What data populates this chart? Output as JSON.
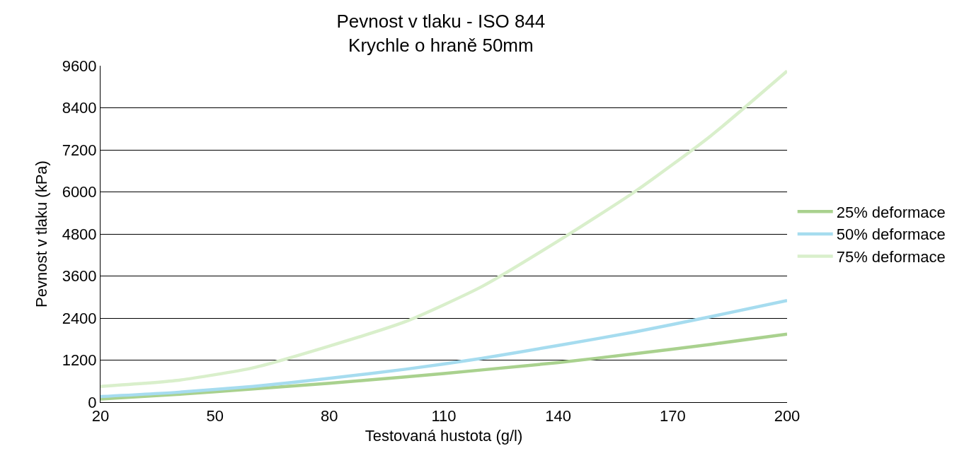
{
  "chart_data": {
    "type": "line",
    "title": "Pevnost v tlaku - ISO 844",
    "subtitle": "Krychle o hraně 50mm",
    "xlabel": "Testovaná hustota (g/l)",
    "ylabel": "Pevnost v tlaku (kPa)",
    "x": [
      20,
      40,
      60,
      80,
      100,
      120,
      140,
      160,
      180,
      200
    ],
    "series": [
      {
        "name": "25% deformace",
        "color": "#a9d18e",
        "values": [
          90,
          220,
          380,
          540,
          720,
          920,
          1130,
          1380,
          1650,
          1940
        ]
      },
      {
        "name": "50% deformace",
        "color": "#a6dcef",
        "values": [
          160,
          280,
          450,
          680,
          940,
          1250,
          1620,
          2000,
          2440,
          2900
        ]
      },
      {
        "name": "75% deformace",
        "color": "#d9efcb",
        "values": [
          450,
          620,
          980,
          1600,
          2300,
          3300,
          4600,
          6000,
          7600,
          9450
        ]
      }
    ],
    "xlim": [
      20,
      200
    ],
    "xticks": [
      20,
      50,
      80,
      110,
      140,
      170,
      200
    ],
    "ylim": [
      0,
      9600
    ],
    "yticks": [
      0,
      1200,
      2400,
      3600,
      4800,
      6000,
      7200,
      8400,
      9600
    ],
    "grid": "y",
    "legend": "right",
    "marker": "none",
    "line_style": "solid"
  }
}
